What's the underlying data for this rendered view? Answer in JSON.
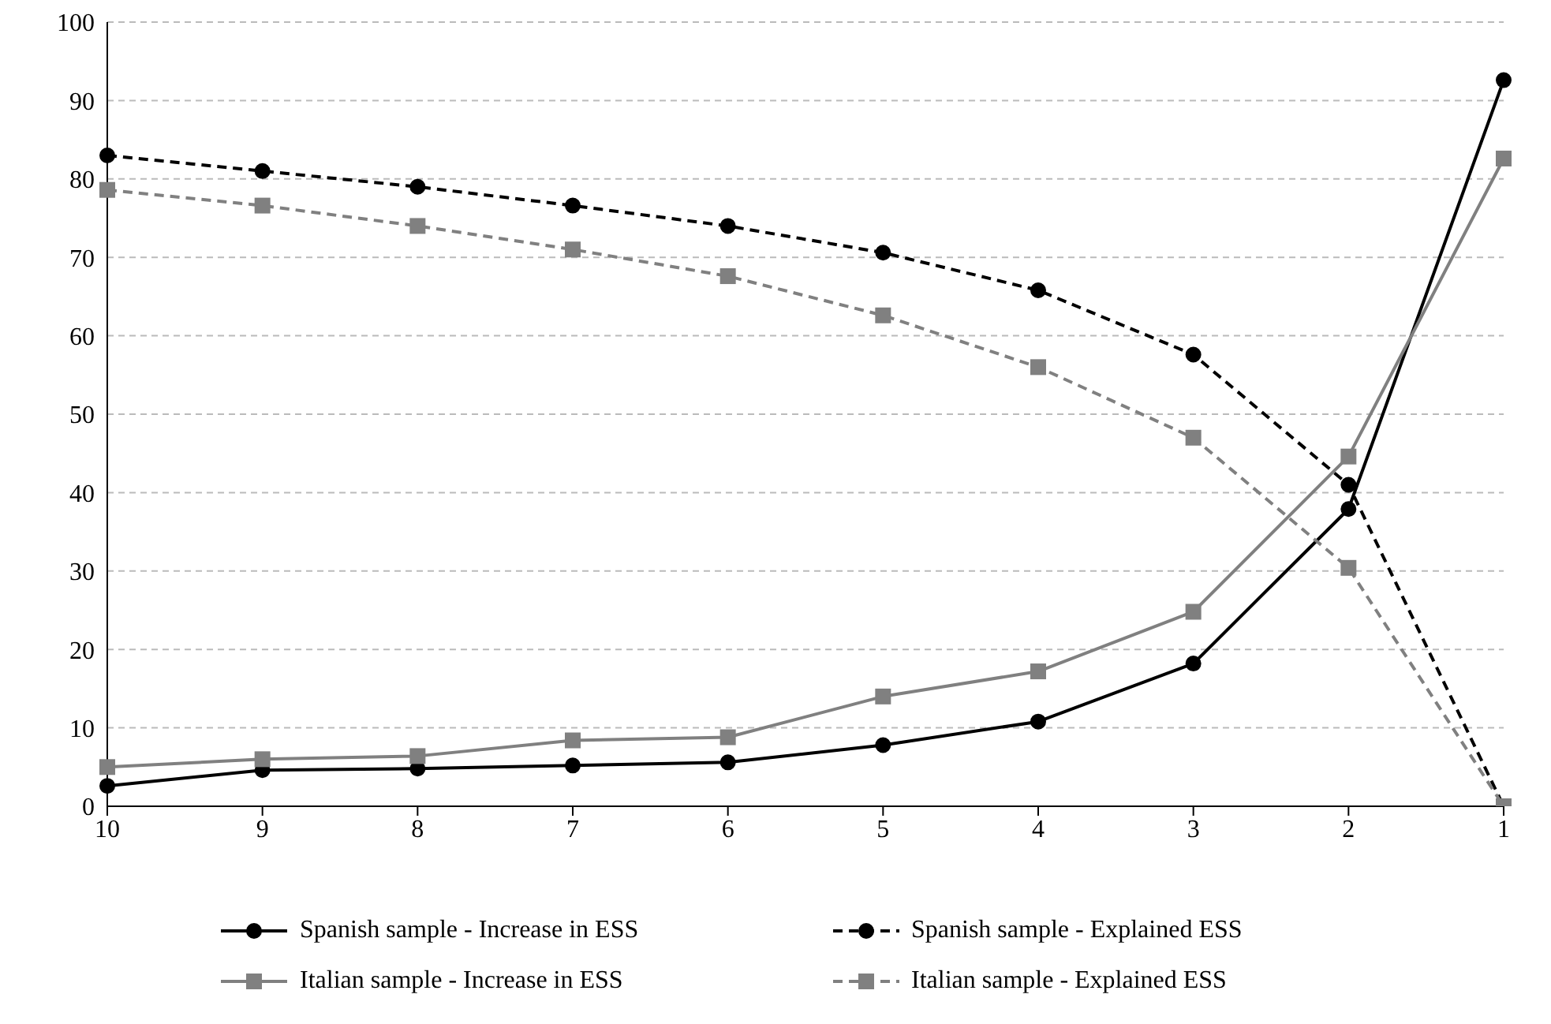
{
  "chart_data": {
    "type": "line",
    "categories": [
      "10",
      "9",
      "8",
      "7",
      "6",
      "5",
      "4",
      "3",
      "2",
      "1"
    ],
    "ylim": [
      0,
      100
    ],
    "yticks": [
      0,
      10,
      20,
      30,
      40,
      50,
      60,
      70,
      80,
      90,
      100
    ],
    "grid": "y",
    "legend": "bottom",
    "series": [
      {
        "name": "Spanish sample - Increase in ESS",
        "color": "#000000",
        "marker": "circle",
        "line_style": "solid",
        "values": [
          2.6,
          4.6,
          4.8,
          5.2,
          5.6,
          7.8,
          10.8,
          18.2,
          37.9,
          92.6
        ]
      },
      {
        "name": "Spanish sample - Explained ESS",
        "color": "#000000",
        "marker": "circle",
        "line_style": "dashed",
        "values": [
          83,
          81,
          79,
          76.6,
          74,
          70.6,
          65.8,
          57.6,
          41,
          0
        ]
      },
      {
        "name": "Italian sample - Increase in ESS",
        "color": "#808080",
        "marker": "square",
        "line_style": "solid",
        "values": [
          5,
          6,
          6.4,
          8.4,
          8.8,
          14,
          17.2,
          24.8,
          44.6,
          82.6
        ]
      },
      {
        "name": "Italian sample - Explained ESS",
        "color": "#808080",
        "marker": "square",
        "line_style": "dashed",
        "values": [
          78.6,
          76.6,
          74,
          71,
          67.6,
          62.6,
          56,
          47,
          30.4,
          0
        ]
      }
    ]
  }
}
